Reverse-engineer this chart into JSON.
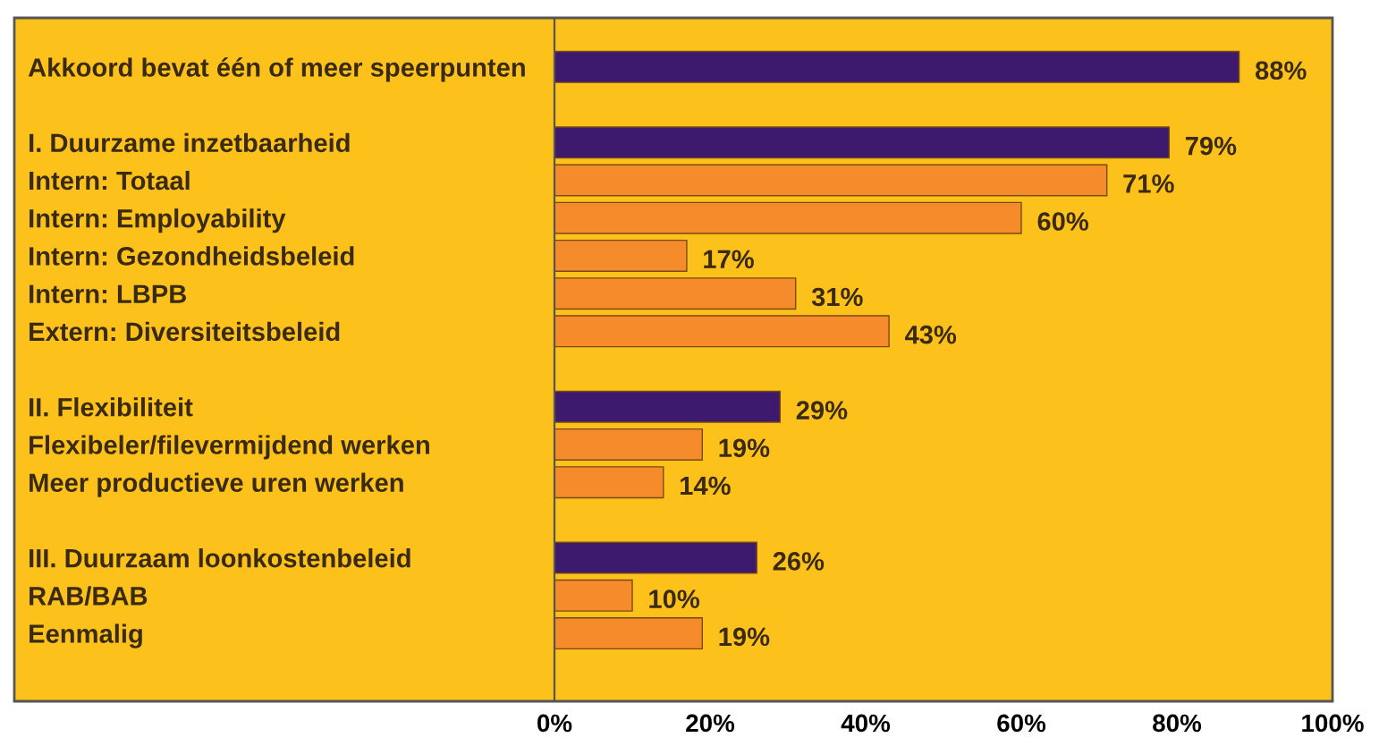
{
  "chart_data": {
    "type": "bar",
    "orientation": "horizontal",
    "categories": [
      "Akkoord bevat één of meer speerpunten",
      null,
      "I. Duurzame inzetbaarheid",
      "Intern: Totaal",
      "Intern: Employability",
      "Intern: Gezondheidsbeleid",
      "Intern: LBPB",
      "Extern: Diversiteitsbeleid",
      null,
      "II. Flexibiliteit",
      "Flexibeler/filevermijdend werken",
      "Meer productieve uren werken",
      null,
      "III. Duurzaam loonkostenbeleid",
      "RAB/BAB",
      "Eenmalig"
    ],
    "values": [
      88,
      null,
      79,
      71,
      60,
      17,
      31,
      43,
      null,
      29,
      19,
      14,
      null,
      26,
      10,
      19
    ],
    "value_labels": [
      "88%",
      null,
      "79%",
      "71%",
      "60%",
      "17%",
      "31%",
      "43%",
      null,
      "29%",
      "19%",
      "14%",
      null,
      "26%",
      "10%",
      "19%"
    ],
    "colors": [
      "#3d1a6e",
      null,
      "#3d1a6e",
      "#f58b2a",
      "#f58b2a",
      "#f58b2a",
      "#f58b2a",
      "#f58b2a",
      null,
      "#3d1a6e",
      "#f58b2a",
      "#f58b2a",
      null,
      "#3d1a6e",
      "#f58b2a",
      "#f58b2a"
    ],
    "xlim": [
      0,
      100
    ],
    "xticks": [
      {
        "value": 0,
        "label": "0%"
      },
      {
        "value": 20,
        "label": "20%"
      },
      {
        "value": 40,
        "label": "40%"
      },
      {
        "value": 60,
        "label": "60%"
      },
      {
        "value": 80,
        "label": "80%"
      },
      {
        "value": 100,
        "label": "100%"
      }
    ],
    "grid": false
  }
}
